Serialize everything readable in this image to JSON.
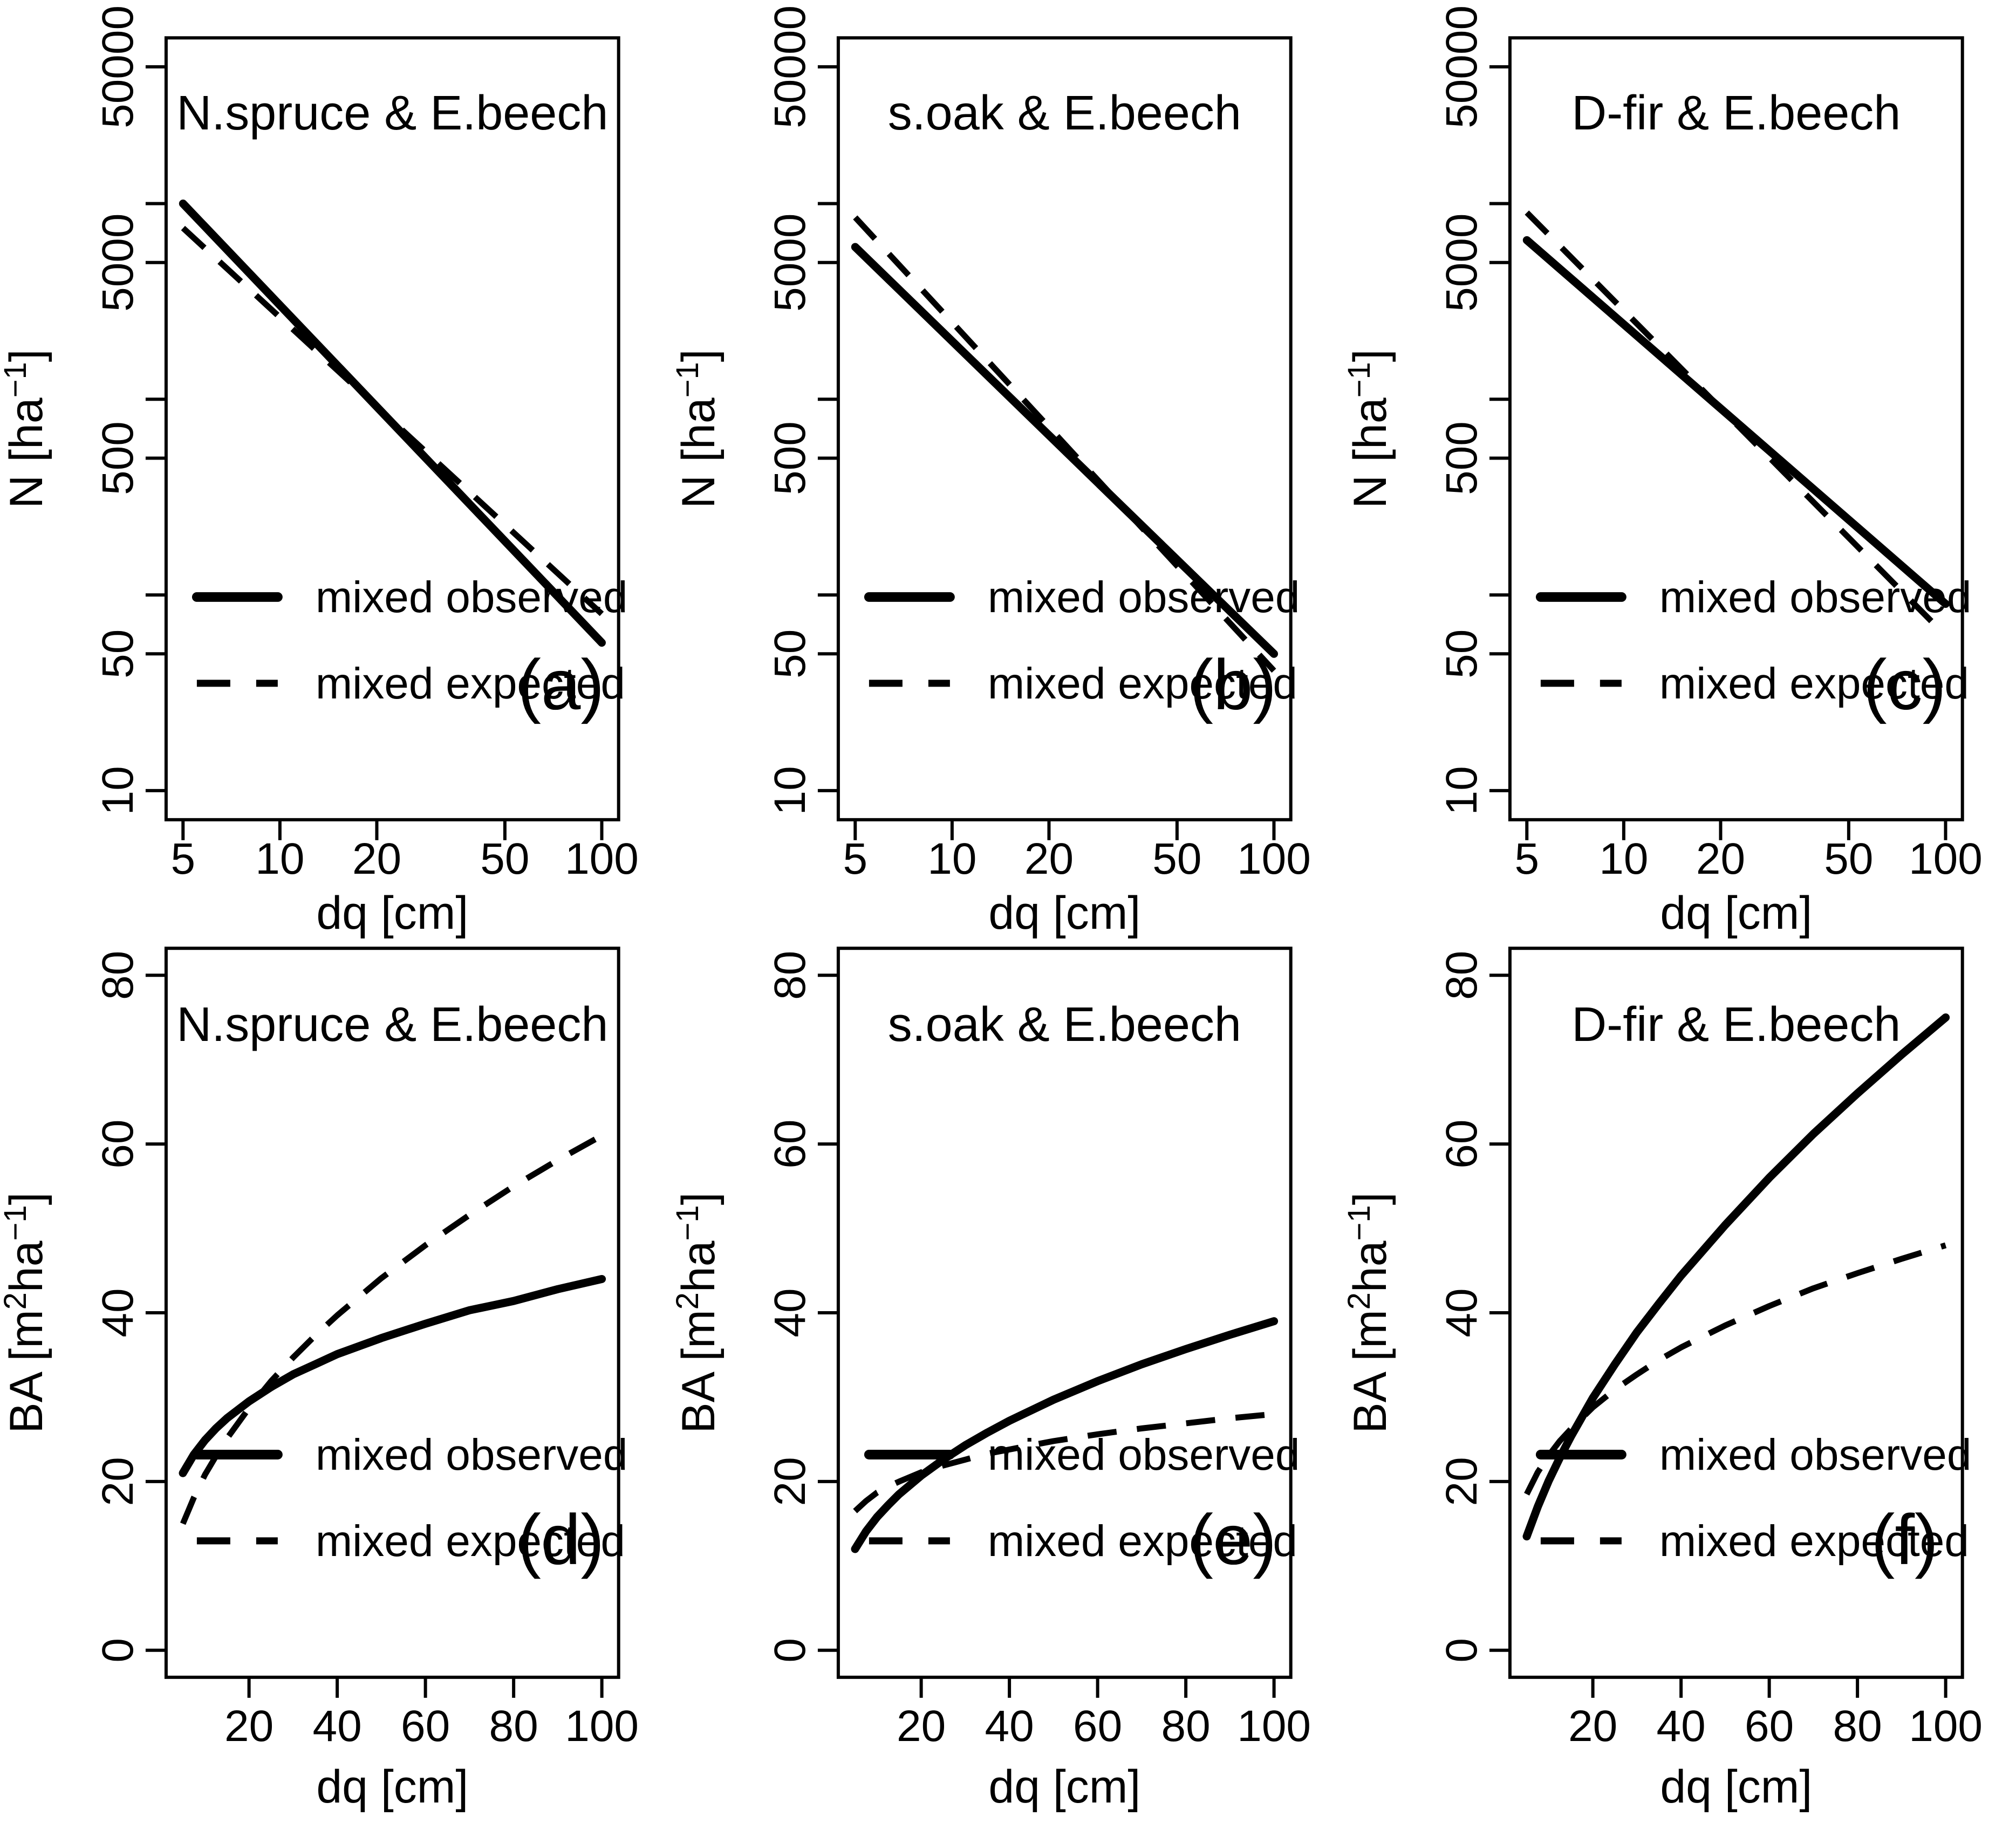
{
  "figure": {
    "background": "#ffffff",
    "ink": "#000000",
    "rows": 2,
    "cols": 3
  },
  "legend_labels": {
    "observed": "mixed observed",
    "expected": "mixed expected"
  },
  "chart_data": [
    {
      "id": "a",
      "tag": "(a)",
      "row": 1,
      "type": "line",
      "title": "N.spruce & E.beech",
      "xlabel": "dq [cm]",
      "ylabel_parts": [
        {
          "t": "N [ha"
        },
        {
          "t": "−1",
          "sup": true
        },
        {
          "t": "]"
        }
      ],
      "xscale": "log",
      "yscale": "log",
      "xlim": [
        4.43,
        112.8
      ],
      "ylim": [
        7.1,
        70300
      ],
      "xticks": [
        5,
        10,
        20,
        50,
        100
      ],
      "yticks": [
        10,
        50,
        500,
        5000,
        50000
      ],
      "yticks_minor": [
        100,
        1000,
        10000
      ],
      "legend_position": "bottom-left",
      "grid": false,
      "series": [
        {
          "name": "mixed observed",
          "dash": "solid",
          "x": [
            5,
            100
          ],
          "y": [
            10000,
            57
          ]
        },
        {
          "name": "mixed expected",
          "dash": "dashed",
          "x": [
            5,
            100
          ],
          "y": [
            7500,
            80
          ]
        }
      ]
    },
    {
      "id": "b",
      "tag": "(b)",
      "row": 1,
      "type": "line",
      "title": "s.oak & E.beech",
      "xlabel": "dq [cm]",
      "ylabel_parts": [
        {
          "t": "N [ha"
        },
        {
          "t": "−1",
          "sup": true
        },
        {
          "t": "]"
        }
      ],
      "xscale": "log",
      "yscale": "log",
      "xlim": [
        4.43,
        112.8
      ],
      "ylim": [
        7.1,
        70300
      ],
      "xticks": [
        5,
        10,
        20,
        50,
        100
      ],
      "yticks": [
        10,
        50,
        500,
        5000,
        50000
      ],
      "yticks_minor": [
        100,
        1000,
        10000
      ],
      "legend_position": "bottom-left",
      "grid": false,
      "series": [
        {
          "name": "mixed observed",
          "dash": "solid",
          "x": [
            5,
            100
          ],
          "y": [
            6000,
            50
          ]
        },
        {
          "name": "mixed expected",
          "dash": "dashed",
          "x": [
            5,
            100
          ],
          "y": [
            8500,
            41
          ]
        }
      ]
    },
    {
      "id": "c",
      "tag": "(c)",
      "row": 1,
      "type": "line",
      "title": "D-fir & E.beech",
      "xlabel": "dq [cm]",
      "ylabel_parts": [
        {
          "t": "N [ha"
        },
        {
          "t": "−1",
          "sup": true
        },
        {
          "t": "]"
        }
      ],
      "xscale": "log",
      "yscale": "log",
      "xlim": [
        4.43,
        112.8
      ],
      "ylim": [
        7.1,
        70300
      ],
      "xticks": [
        5,
        10,
        20,
        50,
        100
      ],
      "yticks": [
        10,
        50,
        500,
        5000,
        50000
      ],
      "yticks_minor": [
        100,
        1000,
        10000
      ],
      "legend_position": "bottom-left",
      "grid": false,
      "series": [
        {
          "name": "mixed observed",
          "dash": "solid",
          "x": [
            5,
            100
          ],
          "y": [
            6500,
            90
          ]
        },
        {
          "name": "mixed expected",
          "dash": "dashed",
          "x": [
            5,
            100
          ],
          "y": [
            9000,
            62
          ]
        }
      ]
    },
    {
      "id": "d",
      "tag": "(d)",
      "row": 2,
      "type": "line",
      "title": "N.spruce & E.beech",
      "xlabel": "dq [cm]",
      "ylabel_parts": [
        {
          "t": "BA [m"
        },
        {
          "t": "2",
          "sup": true
        },
        {
          "t": "ha"
        },
        {
          "t": "−1",
          "sup": true
        },
        {
          "t": "]"
        }
      ],
      "xscale": "linear",
      "yscale": "linear",
      "xlim": [
        1.2,
        103.8
      ],
      "ylim": [
        -3.2,
        83.2
      ],
      "xticks": [
        20,
        40,
        60,
        80,
        100
      ],
      "yticks": [
        0,
        20,
        40,
        60,
        80
      ],
      "yticks_minor": [],
      "legend_position": "bottom-left",
      "grid": false,
      "series": [
        {
          "name": "mixed observed",
          "dash": "solid",
          "x": [
            5,
            7.5,
            10,
            12.5,
            15,
            20,
            25,
            30,
            35,
            40,
            50,
            60,
            70,
            80,
            90,
            100
          ],
          "y": [
            21.0,
            23.2,
            24.9,
            26.3,
            27.5,
            29.5,
            31.2,
            32.7,
            33.9,
            35.1,
            37.0,
            38.7,
            40.3,
            41.4,
            42.8,
            44.0
          ]
        },
        {
          "name": "mixed expected",
          "dash": "dashed",
          "x": [
            5,
            7.5,
            10,
            12.5,
            15,
            20,
            25,
            30,
            35,
            40,
            50,
            60,
            70,
            80,
            90,
            100
          ],
          "y": [
            15.0,
            18.1,
            20.8,
            23.0,
            25.1,
            28.7,
            31.9,
            34.7,
            37.3,
            39.7,
            44.1,
            48.0,
            51.6,
            55.0,
            58.1,
            61.0
          ]
        }
      ]
    },
    {
      "id": "e",
      "tag": "(e)",
      "row": 2,
      "type": "line",
      "title": "s.oak & E.beech",
      "xlabel": "dq [cm]",
      "ylabel_parts": [
        {
          "t": "BA [m"
        },
        {
          "t": "2",
          "sup": true
        },
        {
          "t": "ha"
        },
        {
          "t": "−1",
          "sup": true
        },
        {
          "t": "]"
        }
      ],
      "xscale": "linear",
      "yscale": "linear",
      "xlim": [
        1.2,
        103.8
      ],
      "ylim": [
        -3.2,
        83.2
      ],
      "xticks": [
        20,
        40,
        60,
        80,
        100
      ],
      "yticks": [
        0,
        20,
        40,
        60,
        80
      ],
      "yticks_minor": [],
      "legend_position": "bottom-left",
      "grid": false,
      "series": [
        {
          "name": "mixed observed",
          "dash": "solid",
          "x": [
            5,
            7.5,
            10,
            12.5,
            15,
            20,
            25,
            30,
            35,
            40,
            50,
            60,
            70,
            80,
            90,
            100
          ],
          "y": [
            12.0,
            14.1,
            15.8,
            17.2,
            18.5,
            20.7,
            22.6,
            24.3,
            25.8,
            27.2,
            29.7,
            31.9,
            33.9,
            35.7,
            37.4,
            39.0
          ]
        },
        {
          "name": "mixed expected",
          "dash": "dashed",
          "x": [
            5,
            7.5,
            10,
            12.5,
            15,
            20,
            25,
            30,
            35,
            40,
            50,
            60,
            70,
            80,
            90,
            100
          ],
          "y": [
            16.5,
            17.7,
            18.7,
            19.4,
            20.0,
            21.1,
            21.9,
            22.6,
            23.3,
            23.8,
            24.8,
            25.6,
            26.3,
            26.9,
            27.5,
            28.0
          ]
        }
      ]
    },
    {
      "id": "f",
      "tag": "(f)",
      "row": 2,
      "type": "line",
      "title": "D-fir & E.beech",
      "xlabel": "dq [cm]",
      "ylabel_parts": [
        {
          "t": "BA [m"
        },
        {
          "t": "2",
          "sup": true
        },
        {
          "t": "ha"
        },
        {
          "t": "−1",
          "sup": true
        },
        {
          "t": "]"
        }
      ],
      "xscale": "linear",
      "yscale": "linear",
      "xlim": [
        1.2,
        103.8
      ],
      "ylim": [
        -3.2,
        83.2
      ],
      "xticks": [
        20,
        40,
        60,
        80,
        100
      ],
      "yticks": [
        0,
        20,
        40,
        60,
        80
      ],
      "yticks_minor": [],
      "legend_position": "bottom-left",
      "grid": false,
      "series": [
        {
          "name": "mixed observed",
          "dash": "solid",
          "x": [
            5,
            7.5,
            10,
            12.5,
            15,
            20,
            25,
            30,
            35,
            40,
            50,
            60,
            70,
            80,
            90,
            100
          ],
          "y": [
            13.5,
            17.0,
            20.1,
            22.8,
            25.3,
            29.9,
            33.9,
            37.7,
            41.1,
            44.4,
            50.4,
            56.0,
            61.2,
            66.0,
            70.6,
            75.0
          ]
        },
        {
          "name": "mixed expected",
          "dash": "dashed",
          "x": [
            5,
            7.5,
            10,
            12.5,
            15,
            20,
            25,
            30,
            35,
            40,
            50,
            60,
            70,
            80,
            90,
            100
          ],
          "y": [
            18.5,
            21.1,
            23.1,
            24.8,
            26.2,
            28.8,
            30.9,
            32.7,
            34.4,
            35.9,
            38.5,
            40.8,
            42.9,
            44.7,
            46.4,
            48.0
          ]
        }
      ]
    }
  ]
}
